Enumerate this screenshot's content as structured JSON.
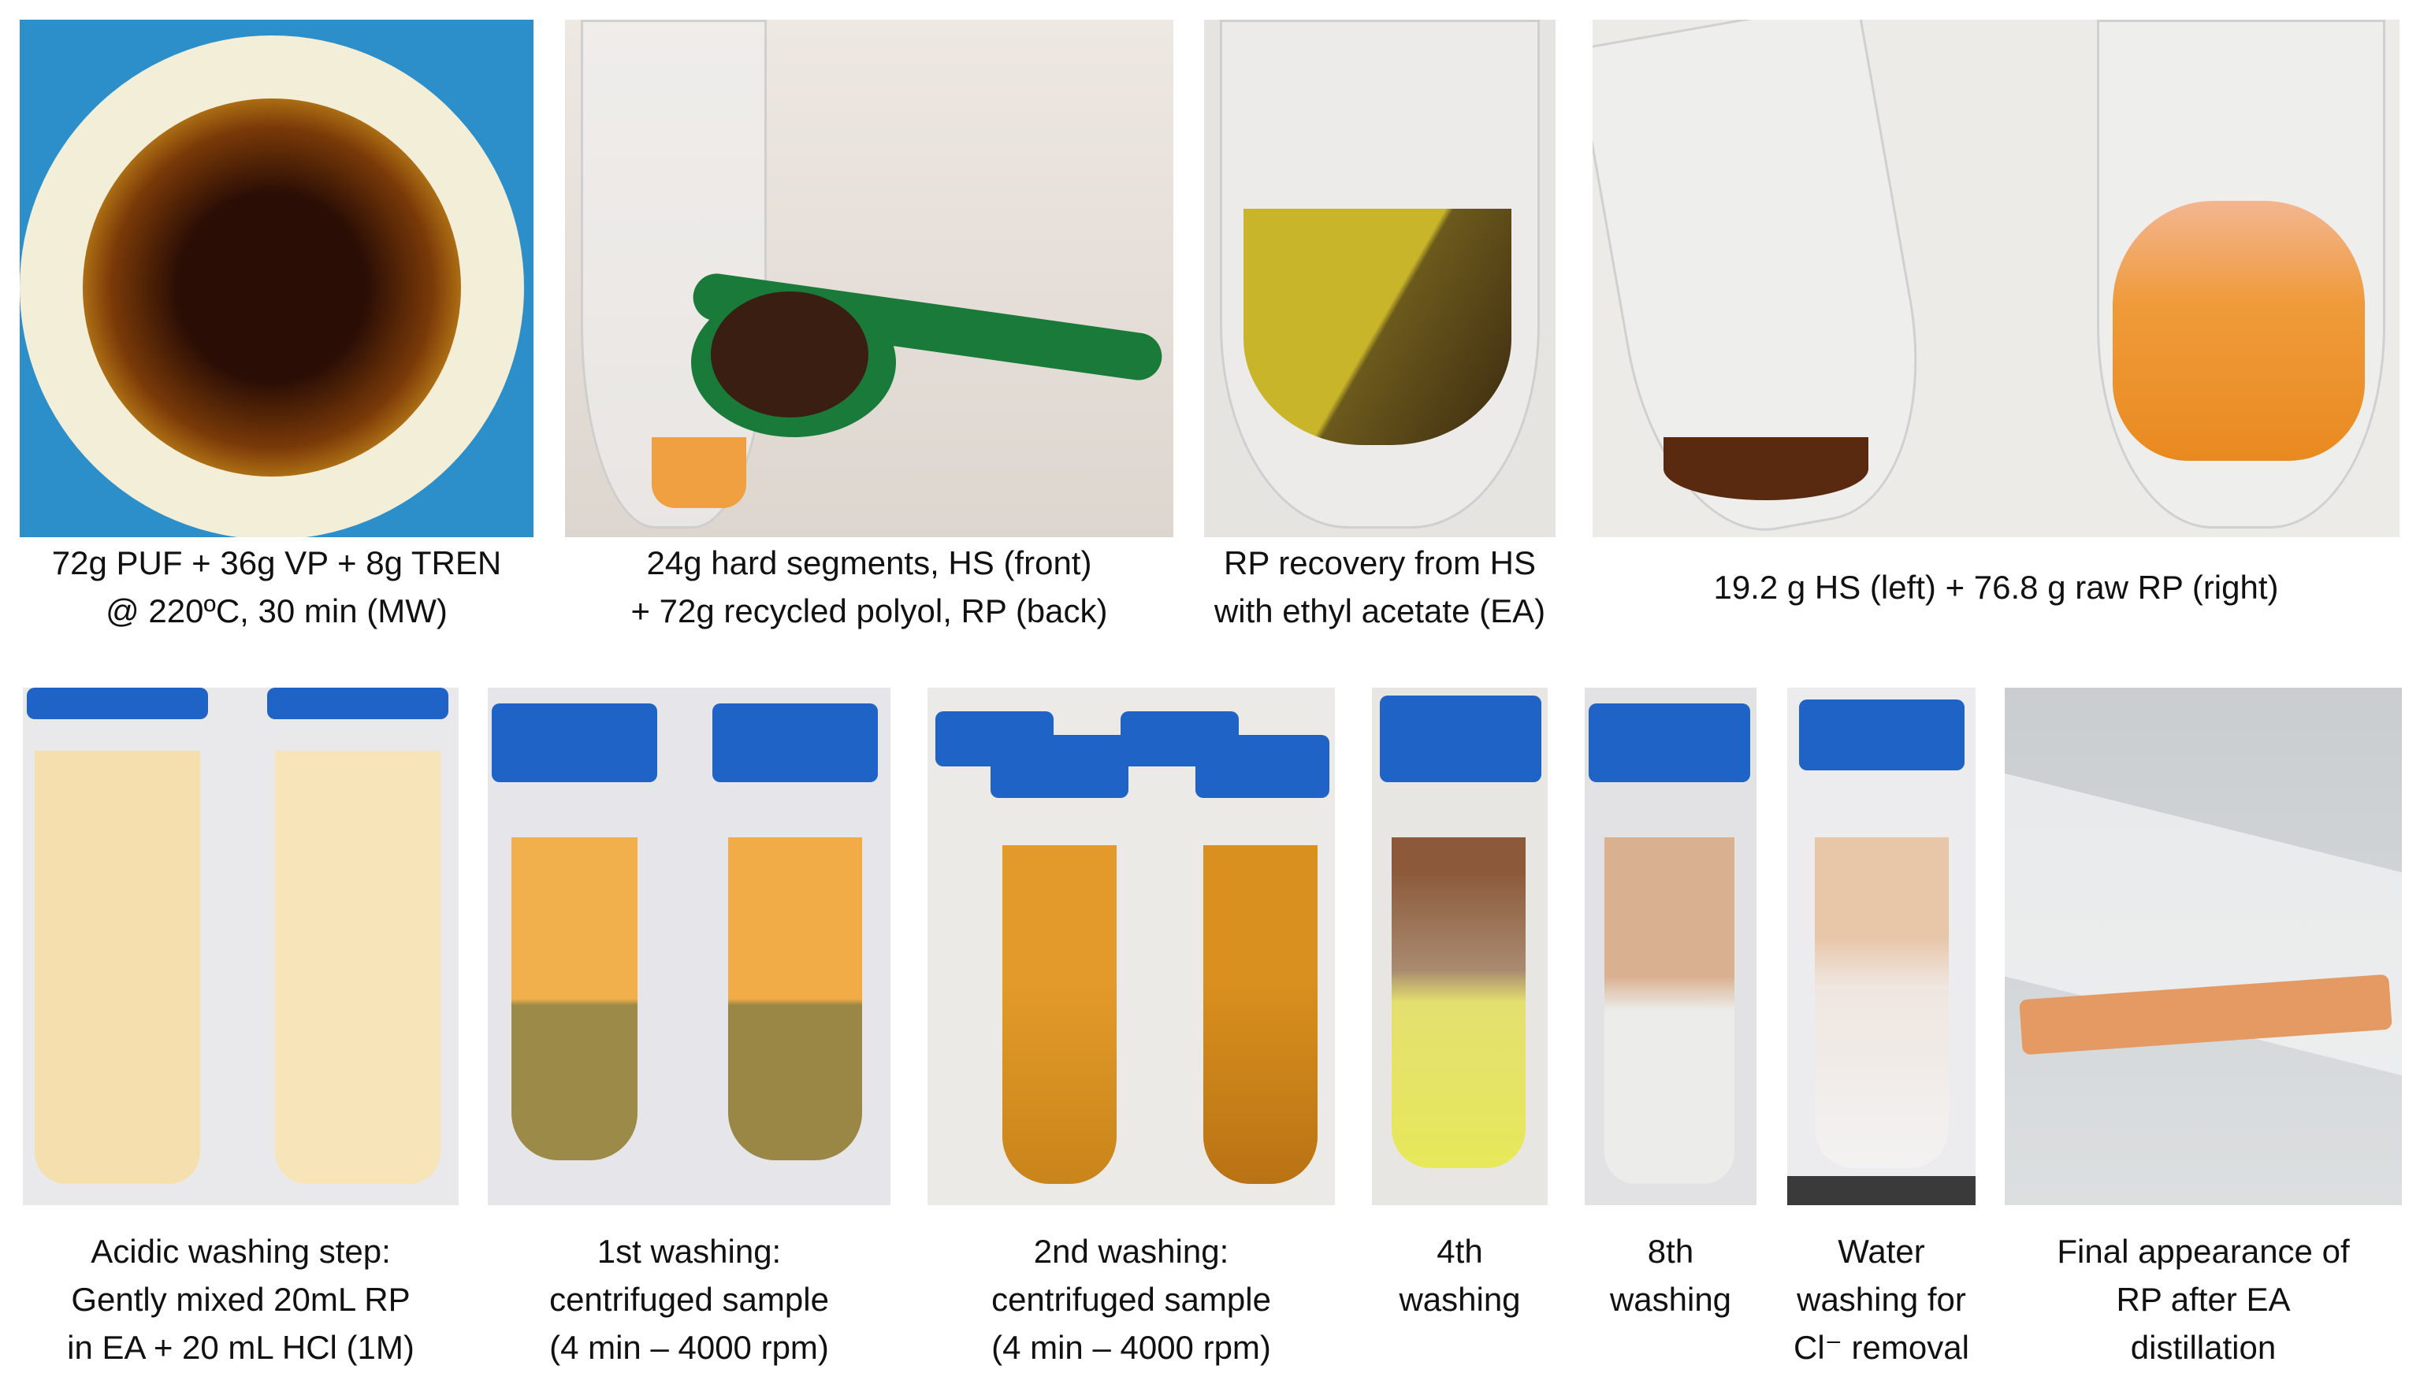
{
  "top_row": [
    {
      "caption": [
        "72g PUF + 36g VP + 8g TREN",
        "@ 220ºC, 30 min (MW)"
      ]
    },
    {
      "caption": [
        "24g hard segments, HS (front)",
        "+ 72g recycled polyol, RP (back)"
      ]
    },
    {
      "caption": [
        "RP recovery from HS",
        "with ethyl acetate (EA)"
      ]
    },
    {
      "caption": [
        "19.2 g HS (left) + 76.8 g raw RP (right)"
      ]
    }
  ],
  "bottom_row": [
    {
      "caption": [
        "Acidic washing step:",
        "Gently mixed 20mL RP",
        "in EA + 20 mL HCl (1M)"
      ]
    },
    {
      "caption": [
        "1st washing:",
        "centrifuged sample",
        "(4 min – 4000 rpm)"
      ]
    },
    {
      "caption": [
        "2nd washing:",
        "centrifuged sample",
        "(4 min – 4000 rpm)"
      ]
    },
    {
      "caption": [
        "4th",
        "washing"
      ]
    },
    {
      "caption": [
        "8th",
        "washing"
      ]
    },
    {
      "caption": [
        "Water",
        "washing for",
        "Cl⁻ removal"
      ]
    },
    {
      "caption": [
        "Final appearance of",
        "RP after EA",
        "distillation"
      ]
    }
  ]
}
